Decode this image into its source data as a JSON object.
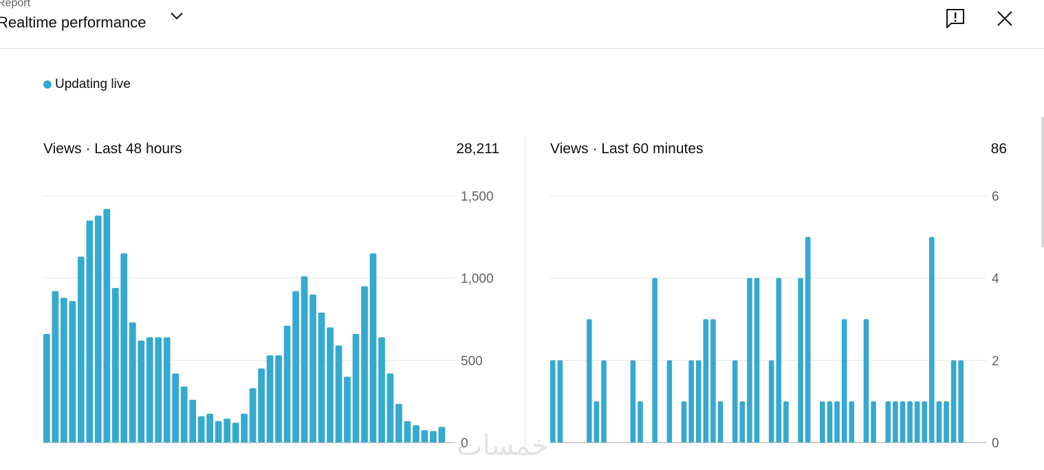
{
  "header": {
    "label": "Report",
    "title": "Realtime performance"
  },
  "status": {
    "live_text": "Updating live",
    "color": "#36a9cf"
  },
  "cards": [
    {
      "title": "Views · Last 48 hours",
      "total": "28,211"
    },
    {
      "title": "Views · Last 60 minutes",
      "total": "86"
    }
  ],
  "icons": {
    "dropdown": "chevron-down-icon",
    "feedback": "feedback-icon",
    "close": "close-icon"
  },
  "watermark": "خمسات",
  "chart_data": [
    {
      "type": "bar",
      "ylim": [
        0,
        1500
      ],
      "yticks": [
        0,
        500,
        1000,
        1500
      ],
      "ytick_labels": [
        "0",
        "500",
        "1,000",
        "1,500"
      ],
      "grid": true,
      "color": "#36a9cf",
      "values": [
        660,
        920,
        880,
        860,
        1130,
        1350,
        1380,
        1420,
        940,
        1150,
        730,
        620,
        640,
        640,
        640,
        420,
        340,
        260,
        160,
        175,
        130,
        145,
        120,
        175,
        330,
        450,
        530,
        530,
        710,
        920,
        1010,
        900,
        790,
        700,
        590,
        400,
        660,
        950,
        1150,
        640,
        420,
        235,
        130,
        105,
        75,
        70,
        95
      ]
    },
    {
      "type": "bar",
      "ylim": [
        0,
        6
      ],
      "yticks": [
        0,
        2,
        4,
        6
      ],
      "ytick_labels": [
        "0",
        "2",
        "4",
        "6"
      ],
      "grid": true,
      "color": "#36a9cf",
      "values": [
        2,
        2,
        0,
        0,
        0,
        3,
        1,
        2,
        0,
        0,
        0,
        2,
        1,
        0,
        4,
        0,
        2,
        0,
        1,
        2,
        2,
        3,
        3,
        1,
        0,
        2,
        1,
        4,
        4,
        0,
        2,
        4,
        1,
        0,
        4,
        5,
        0,
        1,
        1,
        1,
        3,
        1,
        0,
        3,
        1,
        0,
        1,
        1,
        1,
        1,
        1,
        1,
        5,
        1,
        1,
        2,
        2
      ]
    }
  ]
}
